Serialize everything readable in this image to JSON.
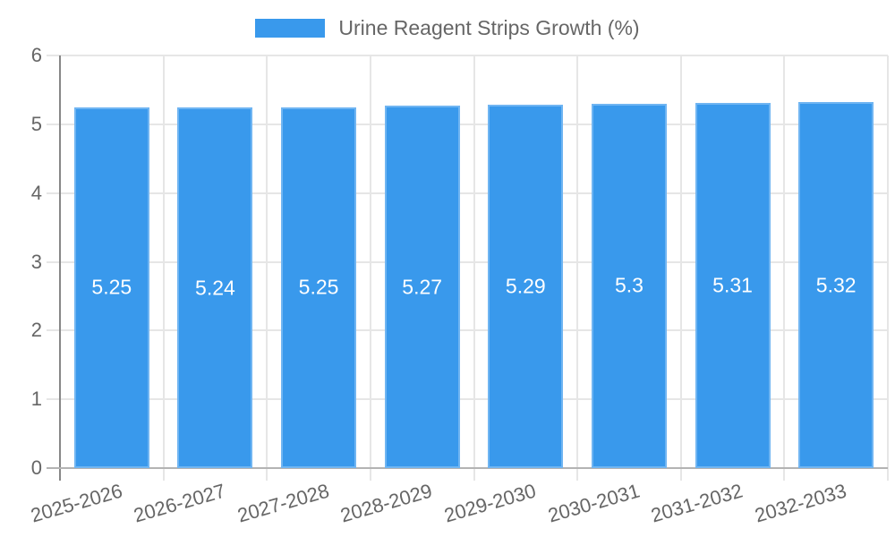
{
  "legend": {
    "label": "Urine Reagent Strips Growth (%)"
  },
  "chart_data": {
    "type": "bar",
    "title": "Urine Reagent Strips Growth (%)",
    "categories": [
      "2025-2026",
      "2026-2027",
      "2027-2028",
      "2028-2029",
      "2029-2030",
      "2030-2031",
      "2031-2032",
      "2032-2033"
    ],
    "values": [
      5.25,
      5.24,
      5.25,
      5.27,
      5.29,
      5.3,
      5.31,
      5.32
    ],
    "series": [
      {
        "name": "Urine Reagent Strips Growth (%)",
        "values": [
          5.25,
          5.24,
          5.25,
          5.27,
          5.29,
          5.3,
          5.31,
          5.32
        ]
      }
    ],
    "xlabel": "",
    "ylabel": "",
    "ylim": [
      0,
      6
    ],
    "yticks": [
      0,
      1,
      2,
      3,
      4,
      5,
      6
    ],
    "grid": true,
    "legend_position": "top",
    "bar_labels_inside": true,
    "colors": {
      "bar_fill": "#3999ec",
      "bar_border": "#70b5f2",
      "bar_label_text": "#ffffff",
      "grid": "#e6e6e6",
      "y_axis_line": "#878787",
      "x_baseline": "#b3b3b3",
      "tick_text": "#666666",
      "legend_text": "#666666"
    }
  }
}
